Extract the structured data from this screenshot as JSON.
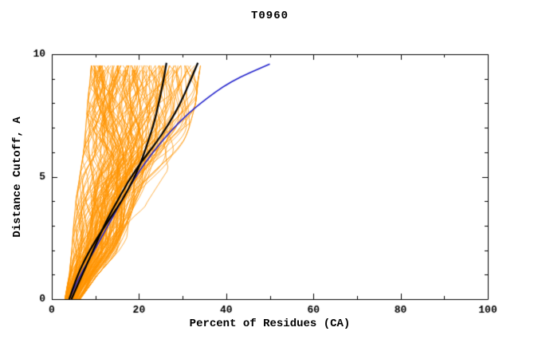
{
  "chart_data": {
    "type": "line",
    "title": "T0960",
    "xlabel": "Percent of Residues (CA)",
    "ylabel": "Distance Cutoff, A",
    "xlim": [
      0,
      100
    ],
    "ylim": [
      0,
      10
    ],
    "x_major_ticks": [
      0,
      20,
      40,
      60,
      80,
      100
    ],
    "x_minor_step": 10,
    "y_major_ticks": [
      0,
      5,
      10
    ],
    "y_minor_step": 1,
    "grid": false,
    "legend": "none",
    "colors": {
      "ensemble": "#ff9400",
      "highlight": "#000000",
      "reference": "#2222cc",
      "frame": "#000000",
      "background": "#ffffff"
    },
    "ensemble": {
      "name": "prediction-ensemble",
      "color_key": "ensemble",
      "count": 135,
      "line_width": 0.8,
      "y_anchors": [
        0,
        1,
        2,
        3,
        4,
        5,
        6,
        7,
        8,
        9,
        9.65
      ],
      "x_min": [
        3.0,
        4.0,
        4.6,
        5.0,
        5.5,
        6.4,
        7.3,
        7.8,
        8.2,
        8.8,
        9.1
      ],
      "x_max": [
        6.5,
        10.5,
        15.5,
        19.0,
        22.0,
        25.6,
        29.3,
        31.5,
        33.0,
        33.6,
        34.2
      ],
      "y_top_range": [
        9.45,
        9.7
      ]
    },
    "series": [
      {
        "name": "highlight-model-1",
        "color_key": "highlight",
        "width": 2.2,
        "points": [
          [
            4,
            0
          ],
          [
            5.5,
            0.8
          ],
          [
            7.5,
            1.6
          ],
          [
            10,
            2.4
          ],
          [
            13,
            3.2
          ],
          [
            16,
            4
          ],
          [
            18.5,
            4.8
          ],
          [
            20.5,
            5.6
          ],
          [
            22,
            6.4
          ],
          [
            23.5,
            7.2
          ],
          [
            24.5,
            8
          ],
          [
            25.5,
            8.8
          ],
          [
            26.3,
            9.65
          ]
        ]
      },
      {
        "name": "highlight-model-2",
        "color_key": "highlight",
        "width": 2.2,
        "points": [
          [
            4.5,
            0
          ],
          [
            6.5,
            0.8
          ],
          [
            8.5,
            1.6
          ],
          [
            10.5,
            2.4
          ],
          [
            12.5,
            3.2
          ],
          [
            15,
            4
          ],
          [
            17.5,
            4.8
          ],
          [
            20.5,
            5.6
          ],
          [
            24,
            6.4
          ],
          [
            27,
            7.2
          ],
          [
            29.5,
            8
          ],
          [
            31.5,
            8.8
          ],
          [
            33.5,
            9.65
          ]
        ]
      },
      {
        "name": "reference-model",
        "color_key": "reference",
        "width": 1.6,
        "points": [
          [
            4,
            0
          ],
          [
            6,
            0.8
          ],
          [
            8.5,
            1.6
          ],
          [
            11,
            2.4
          ],
          [
            13.5,
            3.2
          ],
          [
            16,
            4
          ],
          [
            18.5,
            4.8
          ],
          [
            21.5,
            5.6
          ],
          [
            25,
            6.4
          ],
          [
            29,
            7.2
          ],
          [
            34,
            8
          ],
          [
            41,
            8.9
          ],
          [
            50,
            9.6
          ]
        ]
      }
    ]
  }
}
